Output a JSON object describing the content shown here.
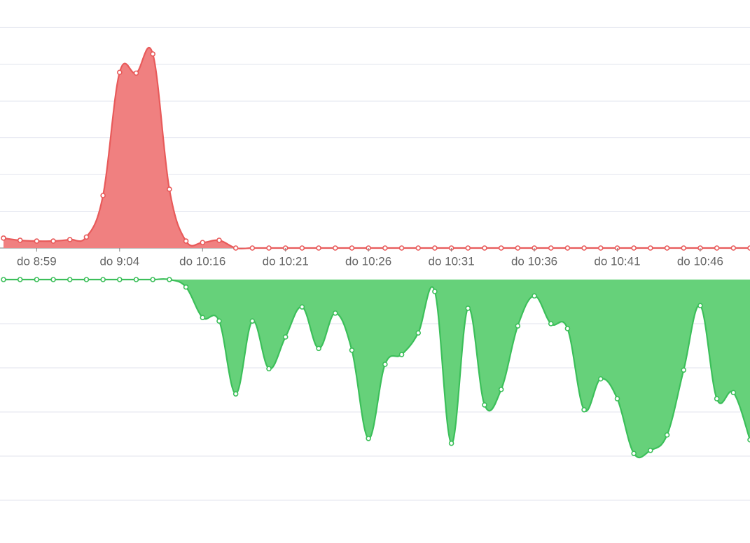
{
  "chart_data": [
    {
      "type": "area",
      "color": "#e85a5a",
      "fill": "#f08080",
      "categories": [
        null,
        null,
        "do 8:59",
        null,
        null,
        null,
        null,
        "do 9:04",
        null,
        null,
        null,
        null,
        "do 10:16",
        null,
        null,
        null,
        null,
        "do 10:21",
        null,
        null,
        null,
        null,
        "do 10:26",
        null,
        null,
        null,
        null,
        "do 10:31",
        null,
        null,
        null,
        null,
        "do 10:36",
        null,
        null,
        null,
        null,
        "do 10:41",
        null,
        null,
        null,
        null,
        "do 10:46",
        null,
        null,
        null
      ],
      "values": [
        0.27,
        0.21,
        0.19,
        0.19,
        0.23,
        0.3,
        1.43,
        4.78,
        4.76,
        5.28,
        1.6,
        0.19,
        0.15,
        0.21,
        0,
        0,
        0,
        0,
        0,
        0,
        0,
        0,
        0,
        0,
        0,
        0,
        0,
        0,
        0,
        0,
        0,
        0,
        0,
        0,
        0,
        0,
        0,
        0,
        0,
        0,
        0,
        0,
        0,
        0,
        0,
        0
      ],
      "ylim": [
        0,
        6.75
      ],
      "yticks": [
        0,
        1,
        2,
        3,
        4,
        5,
        6
      ],
      "grid": true
    },
    {
      "type": "area",
      "color": "#3cbf5a",
      "fill": "#66d17a",
      "values": [
        0,
        0,
        0,
        0,
        0,
        0,
        0,
        0,
        0,
        0,
        0,
        -0.17,
        -0.86,
        -0.94,
        -2.59,
        -0.94,
        -2.02,
        -1.3,
        -0.62,
        -1.56,
        -0.76,
        -1.6,
        -3.6,
        -1.92,
        -1.7,
        -1.21,
        -0.27,
        -3.71,
        -0.65,
        -2.84,
        -2.49,
        -1.05,
        -0.37,
        -1.0,
        -1.11,
        -2.95,
        -2.25,
        -2.7,
        -3.94,
        -3.87,
        -3.52,
        -2.05,
        -0.59,
        -2.7,
        -2.56,
        -3.63
      ],
      "ylim": [
        -6,
        0
      ],
      "yticks": [
        0,
        -1,
        -2,
        -3,
        -4,
        -5
      ],
      "grid": true
    }
  ]
}
